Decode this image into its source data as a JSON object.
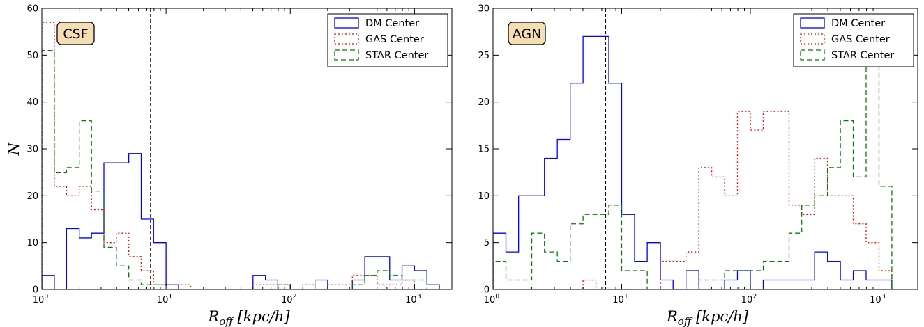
{
  "chart_data": [
    {
      "type": "histogram",
      "panel_label": "CSF",
      "xlabel": "R_off [kpc/h]",
      "ylabel": "N",
      "xscale": "log",
      "xlim": [
        1,
        2000
      ],
      "ylim": [
        0,
        60
      ],
      "yticks": [
        0,
        10,
        20,
        30,
        40,
        50,
        60
      ],
      "xticks": [
        {
          "value": 1,
          "exp": "0"
        },
        {
          "value": 10,
          "exp": "1"
        },
        {
          "value": 100,
          "exp": "2"
        },
        {
          "value": 1000,
          "exp": "3"
        }
      ],
      "vline": 7.5,
      "legend_location": "top-right",
      "series": [
        {
          "name": "DM Center",
          "color": "#0000ff",
          "dash": "solid",
          "edges": [
            1.0,
            1.26,
            1.58,
            2.0,
            2.51,
            3.16,
            3.98,
            5.01,
            6.31,
            7.94,
            10.0,
            12.6,
            15.8,
            20.0,
            25.1,
            31.6,
            39.8,
            50.1,
            63.1,
            79.4,
            100,
            126,
            158,
            200,
            251,
            316,
            398,
            501,
            631,
            794,
            1000,
            1259,
            1585
          ],
          "counts": [
            3,
            0,
            13,
            11,
            12,
            27,
            27,
            29,
            15,
            10,
            1,
            0,
            0,
            0,
            0,
            0,
            0,
            3,
            2,
            0,
            0,
            0,
            2,
            0,
            0,
            2,
            7,
            7,
            2,
            5,
            4,
            1
          ]
        },
        {
          "name": "GAS Center",
          "color": "#ff0000",
          "dash": "dotted",
          "edges": [
            1.0,
            1.26,
            1.58,
            2.0,
            2.51,
            3.16,
            3.98,
            5.01,
            6.31,
            7.94,
            10.0,
            12.6,
            15.8,
            20.0,
            25.1,
            31.6,
            39.8,
            50.1,
            63.1,
            79.4,
            100,
            126,
            158,
            200,
            251,
            316,
            398,
            501,
            631,
            794,
            1000,
            1259
          ],
          "counts": [
            57,
            22,
            20,
            22,
            17,
            10,
            12,
            7,
            4,
            1,
            1,
            1,
            0,
            0,
            0,
            0,
            0,
            1,
            1,
            1,
            0,
            1,
            0,
            1,
            1,
            3,
            3,
            1,
            1,
            2,
            0
          ]
        },
        {
          "name": "STAR Center",
          "color": "#008000",
          "dash": "dashed",
          "edges": [
            1.0,
            1.26,
            1.58,
            2.0,
            2.51,
            3.16,
            3.98,
            5.01,
            6.31,
            7.94,
            10.0,
            12.6,
            15.8,
            20.0,
            25.1,
            31.6,
            39.8,
            50.1,
            63.1,
            79.4,
            100,
            126,
            158,
            200,
            251,
            316,
            398,
            501,
            631,
            794,
            1000,
            1259
          ],
          "counts": [
            51,
            25,
            26,
            36,
            21,
            9,
            5,
            2,
            1,
            1,
            0,
            0,
            0,
            0,
            0,
            0,
            0,
            0,
            0,
            1,
            0,
            0,
            0,
            0,
            0,
            1,
            3,
            4,
            3,
            2,
            2
          ]
        }
      ]
    },
    {
      "type": "histogram",
      "panel_label": "AGN",
      "xlabel": "R_off [kpc/h]",
      "ylabel": "",
      "xscale": "log",
      "xlim": [
        1,
        2000
      ],
      "ylim": [
        0,
        30
      ],
      "yticks": [
        0,
        5,
        10,
        15,
        20,
        25,
        30
      ],
      "xticks": [
        {
          "value": 1,
          "exp": "0"
        },
        {
          "value": 10,
          "exp": "1"
        },
        {
          "value": 100,
          "exp": "2"
        },
        {
          "value": 1000,
          "exp": "3"
        }
      ],
      "vline": 7.5,
      "legend_location": "top-right",
      "series": [
        {
          "name": "DM Center",
          "color": "#0000ff",
          "dash": "solid",
          "edges": [
            1.0,
            1.26,
            1.58,
            2.0,
            2.51,
            3.16,
            3.98,
            5.01,
            6.31,
            7.94,
            10.0,
            12.6,
            15.8,
            20.0,
            25.1,
            31.6,
            39.8,
            50.1,
            63.1,
            79.4,
            100,
            126,
            158,
            200,
            251,
            316,
            398,
            501,
            631,
            794,
            1000,
            1259
          ],
          "counts": [
            6,
            4,
            10,
            10,
            14,
            16,
            22,
            27,
            27,
            22,
            8,
            3,
            5,
            1,
            0,
            2,
            0,
            0,
            1,
            2,
            0,
            1,
            1,
            1,
            1,
            4,
            3,
            1,
            2,
            1,
            1
          ]
        },
        {
          "name": "GAS Center",
          "color": "#ff0000",
          "dash": "dotted",
          "edges": [
            1.0,
            1.26,
            1.58,
            2.0,
            2.51,
            3.16,
            3.98,
            5.01,
            6.31,
            7.94,
            10.0,
            12.6,
            15.8,
            20.0,
            25.1,
            31.6,
            39.8,
            50.1,
            63.1,
            79.4,
            100,
            126,
            158,
            200,
            251,
            316,
            398,
            501,
            631,
            794,
            1000,
            1259
          ],
          "counts": [
            0,
            0,
            0,
            0,
            0,
            0,
            0,
            1,
            0,
            0,
            0,
            0,
            0,
            3,
            3,
            4,
            13,
            12,
            10,
            19,
            17,
            19,
            19,
            9,
            8,
            14,
            10,
            10,
            7,
            5,
            2
          ]
        },
        {
          "name": "STAR Center",
          "color": "#008000",
          "dash": "dashed",
          "edges": [
            1.0,
            1.26,
            1.58,
            2.0,
            2.51,
            3.16,
            3.98,
            5.01,
            6.31,
            7.94,
            10.0,
            12.6,
            15.8,
            20.0,
            25.1,
            31.6,
            39.8,
            50.1,
            63.1,
            79.4,
            100,
            126,
            158,
            200,
            251,
            316,
            398,
            501,
            631,
            794,
            1000,
            1259
          ],
          "counts": [
            3,
            1,
            1,
            6,
            4,
            3,
            7,
            8,
            8,
            9,
            2,
            2,
            0,
            0,
            0,
            0,
            1,
            1,
            2,
            2,
            2,
            3,
            3,
            6,
            9,
            10,
            13,
            18,
            12,
            29,
            11
          ]
        }
      ]
    }
  ]
}
